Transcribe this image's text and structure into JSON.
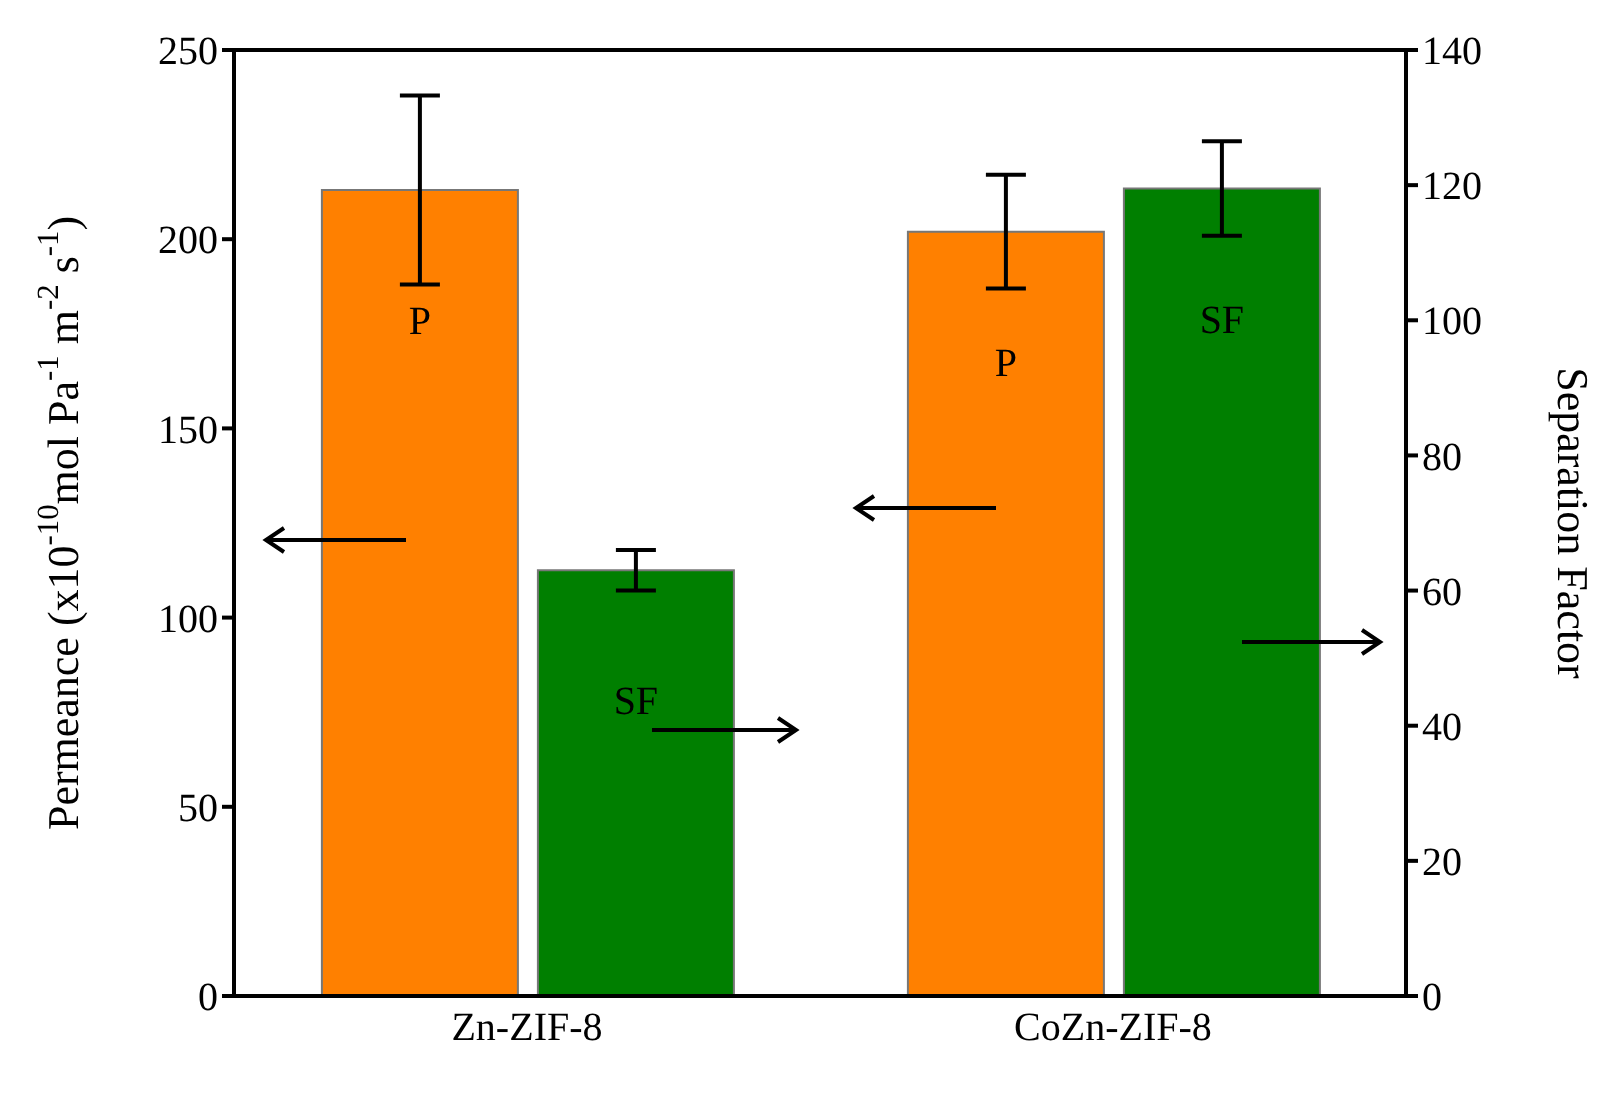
{
  "chart_data": {
    "type": "bar",
    "categories": [
      "Zn-ZIF-8",
      "CoZn-ZIF-8"
    ],
    "ylabel": "Permeance (x10$^{-10}$mol Pa$^{-1}$ m$^{-2}$ s$^{-1}$)",
    "y2label": "Separation Factor",
    "series": [
      {
        "name": "P",
        "color": "#ff8000",
        "values": [
          213,
          202
        ],
        "errors": [
          25,
          15
        ]
      },
      {
        "name": "SF",
        "color": "#007f00",
        "values": [
          63,
          119.5
        ],
        "errors": [
          3,
          7
        ],
        "axis": "y2"
      }
    ],
    "ylim": [
      0,
      250
    ],
    "yticks": [
      0,
      50,
      100,
      150,
      200,
      250
    ],
    "y2lim": [
      0,
      140
    ],
    "y2ticks": [
      0,
      20,
      40,
      60,
      80,
      100,
      120,
      140
    ]
  }
}
